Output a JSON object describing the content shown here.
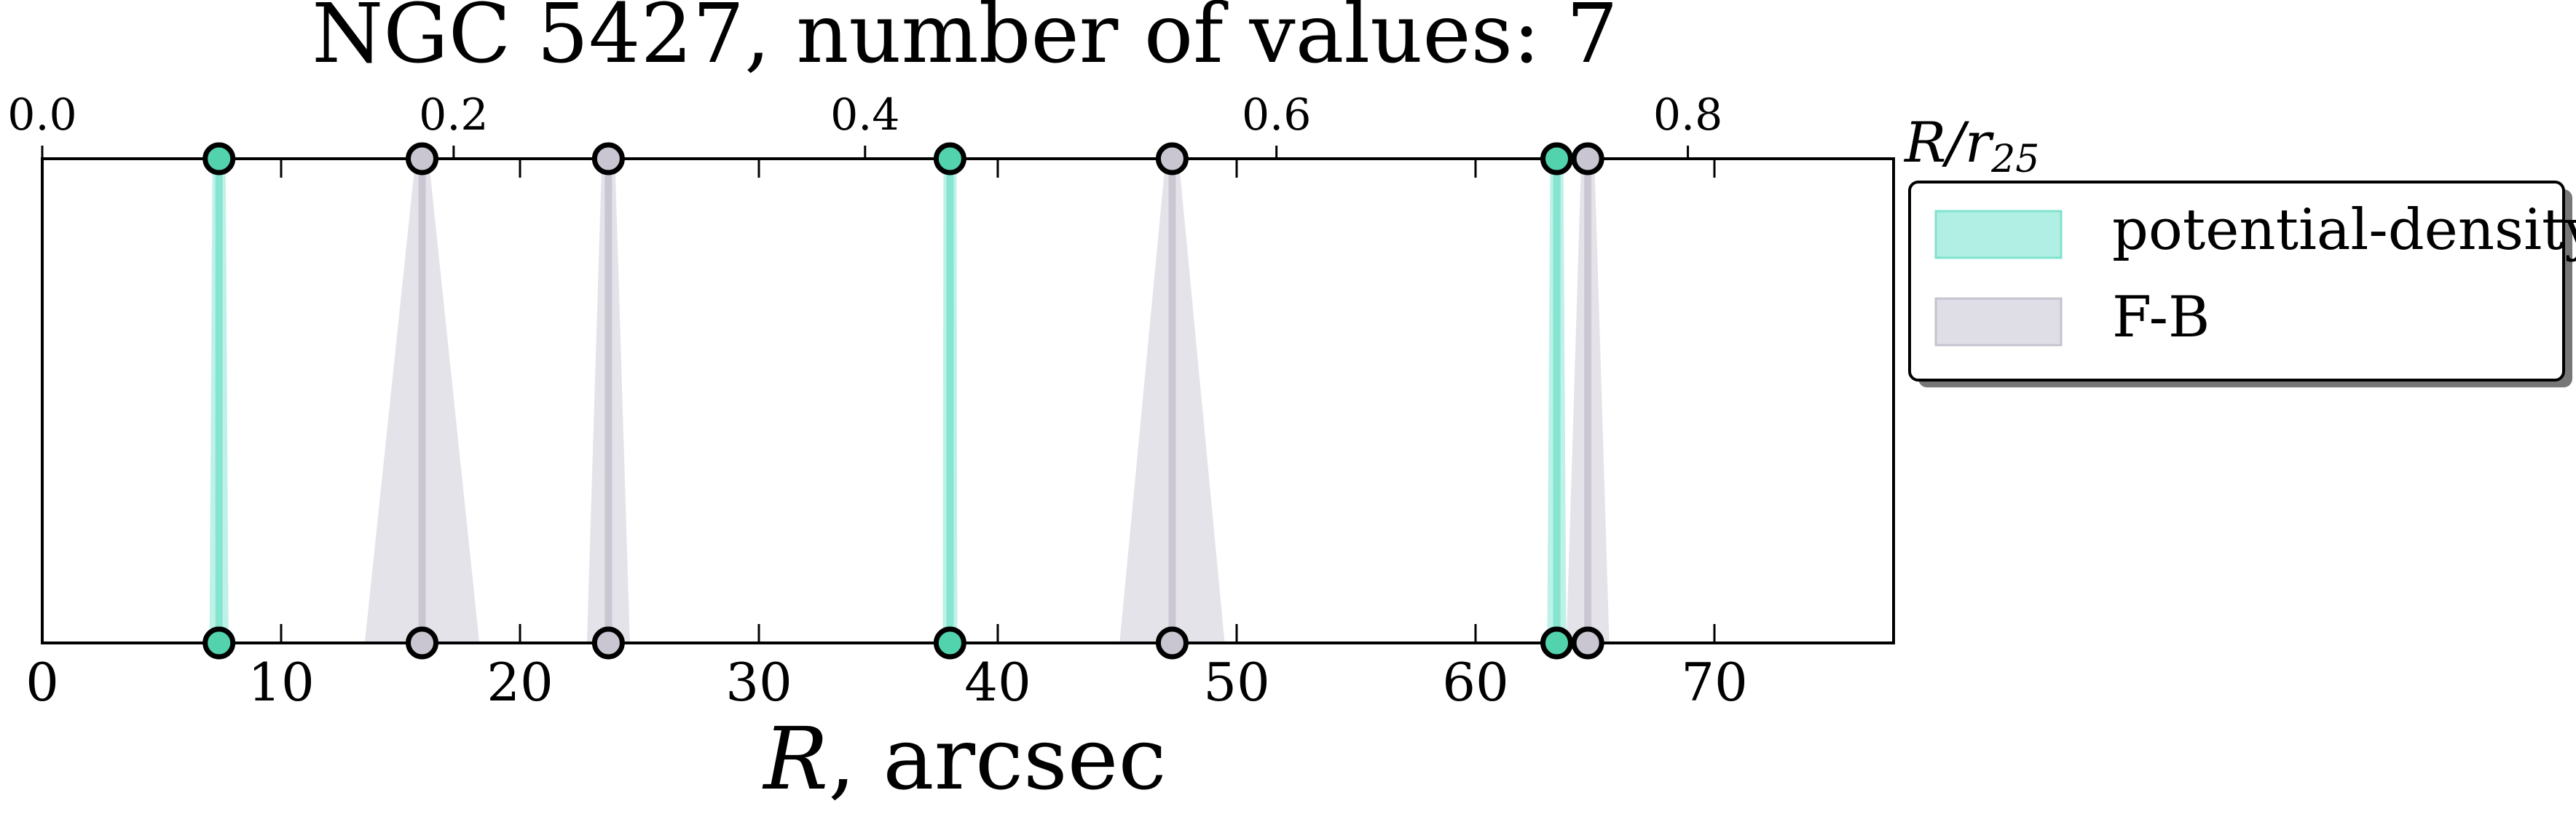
{
  "chart_data": {
    "type": "band-markers",
    "title": "NGC 5427, number of values: 7",
    "xlabel_main": "R",
    "xlabel_unit": ", arcsec",
    "top_axis_label_base": "R/r",
    "top_axis_label_sub": "25",
    "xlim": [
      0,
      77.5
    ],
    "xticks": [
      0,
      10,
      20,
      30,
      40,
      50,
      60,
      70
    ],
    "top_xlim": [
      0.0,
      0.9
    ],
    "top_xticks": [
      0.0,
      0.2,
      0.4,
      0.6,
      0.8
    ],
    "top_xtick_labels": [
      "0.0",
      "0.2",
      "0.4",
      "0.6",
      "0.8"
    ],
    "legend_position": "outside-right",
    "series": [
      {
        "name": "potential-density",
        "color": "#7fe3cc",
        "fill_color": "#a8ece0",
        "marker_color": "#52d3ad",
        "values": [
          {
            "r": 7.4,
            "err": 0.4
          },
          {
            "r": 38.0,
            "err": 0.3
          },
          {
            "r": 63.4,
            "err": 0.4
          }
        ]
      },
      {
        "name": "F-B",
        "color": "#c6c3cf",
        "fill_color": "#dcdae3",
        "marker_color": "#c9c6d2",
        "values": [
          {
            "r": 15.9,
            "err": 2.4
          },
          {
            "r": 23.7,
            "err": 0.9
          },
          {
            "r": 47.3,
            "err": 2.2
          },
          {
            "r": 64.7,
            "err": 0.9
          }
        ]
      }
    ]
  }
}
